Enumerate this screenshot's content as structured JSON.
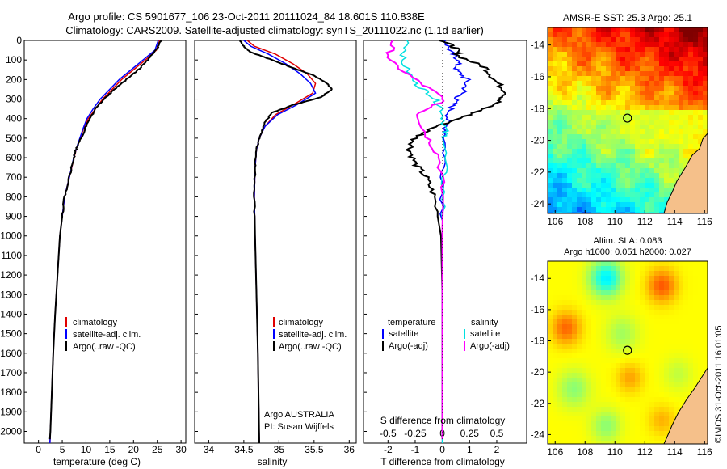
{
  "header": {
    "line1": "Argo profile: CS 5901677_106 23-Oct-2011 20111024_84 18.601S 110.838E",
    "line2": "Climatology: CARS2009. Satellite-adjusted climatology: synTS_20111022.nc (1.1d earlier)"
  },
  "colors": {
    "climatology": "#e00000",
    "satellite": "#0000ff",
    "argo": "#000000",
    "sat_salinity": "#00e0e0",
    "argo_salinity": "#ff00ff",
    "land": "#f5c08a"
  },
  "chart_data": [
    {
      "id": "temperature",
      "type": "line",
      "xlabel": "temperature (deg C)",
      "xticks": [
        "0",
        "5",
        "10",
        "15",
        "20",
        "25",
        "30"
      ],
      "xlim": [
        -3,
        31
      ],
      "yticks": [
        "0",
        "100",
        "200",
        "300",
        "400",
        "500",
        "600",
        "700",
        "800",
        "900",
        "1000",
        "1100",
        "1200",
        "1300",
        "1400",
        "1500",
        "1600",
        "1700",
        "1800",
        "1900",
        "2000"
      ],
      "ylim": [
        0,
        2060
      ],
      "legend": [
        "climatology",
        "satellite-adj. clim.",
        "Argo(..raw -QC)"
      ],
      "series": [
        {
          "name": "climatology",
          "color": "#e00000",
          "points": [
            [
              25.5,
              0
            ],
            [
              24.8,
              50
            ],
            [
              22.5,
              100
            ],
            [
              20,
              150
            ],
            [
              17.5,
              200
            ],
            [
              15.5,
              250
            ],
            [
              13.5,
              300
            ],
            [
              12,
              350
            ],
            [
              10.5,
              400
            ],
            [
              9.5,
              450
            ],
            [
              8.8,
              500
            ],
            [
              8,
              550
            ],
            [
              7.5,
              600
            ],
            [
              6.5,
              700
            ],
            [
              5.5,
              800
            ],
            [
              5,
              900
            ],
            [
              4.5,
              1000
            ],
            [
              4,
              1200
            ],
            [
              3.5,
              1400
            ],
            [
              3.1,
              1600
            ],
            [
              2.8,
              1800
            ],
            [
              2.5,
              2000
            ],
            [
              2.4,
              2060
            ]
          ]
        },
        {
          "name": "satellite",
          "color": "#0000ff",
          "points": [
            [
              25.2,
              0
            ],
            [
              24.5,
              50
            ],
            [
              22,
              100
            ],
            [
              19.5,
              150
            ],
            [
              17,
              200
            ],
            [
              15,
              250
            ],
            [
              13,
              300
            ],
            [
              11.5,
              350
            ],
            [
              10.2,
              400
            ],
            [
              9.4,
              450
            ],
            [
              8.7,
              500
            ],
            [
              8,
              550
            ],
            [
              7.4,
              600
            ],
            [
              6.5,
              700
            ],
            [
              5.5,
              800
            ],
            [
              5,
              900
            ],
            [
              4.5,
              1000
            ],
            [
              4,
              1200
            ],
            [
              3.5,
              1400
            ],
            [
              3.1,
              1600
            ],
            [
              2.8,
              1800
            ],
            [
              2.5,
              2000
            ],
            [
              2.4,
              2060
            ]
          ]
        },
        {
          "name": "Argo",
          "color": "#000000",
          "points": [
            [
              25.8,
              0
            ],
            [
              25,
              40
            ],
            [
              23,
              100
            ],
            [
              21,
              150
            ],
            [
              18.5,
              200
            ],
            [
              16,
              250
            ],
            [
              13.8,
              300
            ],
            [
              12,
              350
            ],
            [
              10.8,
              400
            ],
            [
              9.8,
              450
            ],
            [
              9,
              500
            ],
            [
              8,
              550
            ],
            [
              7.4,
              600
            ],
            [
              6.5,
              700
            ],
            [
              5.5,
              800
            ],
            [
              5,
              900
            ],
            [
              4.5,
              1000
            ],
            [
              4,
              1200
            ],
            [
              3.5,
              1400
            ],
            [
              3.1,
              1600
            ],
            [
              2.8,
              1800
            ],
            [
              2.5,
              2000
            ],
            [
              2.4,
              2040
            ]
          ]
        }
      ]
    },
    {
      "id": "salinity",
      "type": "line",
      "xlabel": "salinity",
      "xticks": [
        "34",
        "34.5",
        "35",
        "35.5",
        "36"
      ],
      "xlim": [
        33.8,
        36.1
      ],
      "ylim": [
        0,
        2060
      ],
      "legend": [
        "climatology",
        "satellite-adj. clim.",
        "Argo(..raw -QC)"
      ],
      "annotation": [
        "Argo AUSTRALIA",
        "PI: Susan Wijffels"
      ],
      "series": [
        {
          "name": "climatology",
          "color": "#e00000",
          "points": [
            [
              34.55,
              0
            ],
            [
              34.65,
              30
            ],
            [
              34.95,
              70
            ],
            [
              35.2,
              120
            ],
            [
              35.4,
              170
            ],
            [
              35.52,
              220
            ],
            [
              35.48,
              270
            ],
            [
              35.2,
              330
            ],
            [
              34.95,
              380
            ],
            [
              34.8,
              440
            ],
            [
              34.72,
              500
            ],
            [
              34.68,
              560
            ],
            [
              34.66,
              650
            ],
            [
              34.65,
              800
            ],
            [
              34.66,
              1000
            ],
            [
              34.68,
              1300
            ],
            [
              34.7,
              1600
            ],
            [
              34.72,
              2060
            ]
          ]
        },
        {
          "name": "satellite",
          "color": "#0000ff",
          "points": [
            [
              34.5,
              0
            ],
            [
              34.6,
              30
            ],
            [
              34.85,
              70
            ],
            [
              35.1,
              120
            ],
            [
              35.3,
              170
            ],
            [
              35.45,
              220
            ],
            [
              35.52,
              270
            ],
            [
              35.25,
              330
            ],
            [
              34.98,
              380
            ],
            [
              34.8,
              440
            ],
            [
              34.72,
              500
            ],
            [
              34.68,
              560
            ],
            [
              34.66,
              650
            ],
            [
              34.65,
              800
            ],
            [
              34.66,
              1000
            ],
            [
              34.68,
              1300
            ],
            [
              34.7,
              1600
            ],
            [
              34.72,
              2060
            ]
          ]
        },
        {
          "name": "Argo",
          "color": "#000000",
          "points": [
            [
              34.45,
              0
            ],
            [
              34.5,
              30
            ],
            [
              34.6,
              60
            ],
            [
              34.9,
              100
            ],
            [
              35.2,
              140
            ],
            [
              35.5,
              180
            ],
            [
              35.68,
              220
            ],
            [
              35.75,
              250
            ],
            [
              35.6,
              290
            ],
            [
              35.2,
              330
            ],
            [
              34.9,
              370
            ],
            [
              34.8,
              420
            ],
            [
              34.72,
              500
            ],
            [
              34.68,
              560
            ],
            [
              34.66,
              650
            ],
            [
              34.65,
              800
            ],
            [
              34.66,
              1000
            ],
            [
              34.68,
              1300
            ],
            [
              34.7,
              1600
            ],
            [
              34.72,
              2060
            ]
          ]
        }
      ]
    },
    {
      "id": "difference",
      "type": "line",
      "xlabel": "T difference from climatology",
      "xlabel_top": "S difference from climatology",
      "xticks_bottom": [
        "-2",
        "-1",
        "0",
        "1",
        "2"
      ],
      "xticks_top": [
        "-0.5",
        "-0.25",
        "0",
        "0.25",
        "0.5"
      ],
      "xlim": [
        -2.9,
        3.1
      ],
      "ylim": [
        0,
        2060
      ],
      "legend_titles": [
        "temperature",
        "salinity"
      ],
      "legend_left": [
        "satellite",
        "Argo(-adj)"
      ],
      "legend_right": [
        "satellite",
        "Argo(-adj)"
      ],
      "series": [
        {
          "name": "T satellite",
          "color": "#0000ff",
          "points": [
            [
              0.1,
              0
            ],
            [
              0.3,
              60
            ],
            [
              0.6,
              100
            ],
            [
              0.5,
              150
            ],
            [
              0.9,
              200
            ],
            [
              0.8,
              260
            ],
            [
              0.5,
              300
            ],
            [
              0.3,
              350
            ],
            [
              0.15,
              420
            ],
            [
              0.1,
              500
            ],
            [
              0.05,
              700
            ],
            [
              0,
              1000
            ],
            [
              0,
              2060
            ]
          ]
        },
        {
          "name": "T Argo",
          "color": "#000000",
          "points": [
            [
              0,
              0
            ],
            [
              0.5,
              40
            ],
            [
              0.6,
              80
            ],
            [
              1.6,
              140
            ],
            [
              1.9,
              200
            ],
            [
              2.4,
              270
            ],
            [
              2.0,
              320
            ],
            [
              1.0,
              380
            ],
            [
              -0.4,
              450
            ],
            [
              -1.0,
              500
            ],
            [
              -1.2,
              560
            ],
            [
              -1.0,
              630
            ],
            [
              -0.6,
              700
            ],
            [
              -0.3,
              800
            ],
            [
              -0.05,
              1000
            ],
            [
              0,
              1300
            ],
            [
              0,
              2040
            ]
          ]
        },
        {
          "name": "S satellite",
          "color": "#00e0e0",
          "points": [
            [
              -1.2,
              0
            ],
            [
              -1.5,
              100
            ],
            [
              -1.0,
              220
            ],
            [
              -0.4,
              280
            ],
            [
              0,
              350
            ],
            [
              0.1,
              450
            ],
            [
              0.1,
              500
            ],
            [
              0.05,
              700
            ],
            [
              0,
              1000
            ],
            [
              0,
              2060
            ]
          ]
        },
        {
          "name": "S Argo",
          "color": "#ff00ff",
          "points": [
            [
              -1.8,
              0
            ],
            [
              -2.0,
              100
            ],
            [
              -0.8,
              220
            ],
            [
              0.1,
              300
            ],
            [
              -0.9,
              380
            ],
            [
              -0.6,
              480
            ],
            [
              -0.1,
              600
            ],
            [
              0,
              800
            ],
            [
              0,
              2040
            ]
          ]
        }
      ]
    }
  ],
  "maps": {
    "sst": {
      "title": "AMSR-E SST: 25.3  Argo: 25.1",
      "xticks": [
        "106",
        "108",
        "110",
        "112",
        "114",
        "116"
      ],
      "yticks": [
        "-14",
        "-16",
        "-18",
        "-20",
        "-22",
        "-24"
      ],
      "float_lon": 110.838,
      "float_lat": -18.601
    },
    "sla": {
      "title1": "Altim. SLA: 0.083",
      "title2": "Argo h1000: 0.051 h2000: 0.027",
      "xticks": [
        "106",
        "108",
        "110",
        "112",
        "114",
        "116"
      ],
      "yticks": [
        "-14",
        "-16",
        "-18",
        "-20",
        "-22",
        "-24"
      ],
      "float_lon": 110.838,
      "float_lat": -18.601
    }
  },
  "footer": "©IMOS 31-Oct-2011 16:01:05"
}
